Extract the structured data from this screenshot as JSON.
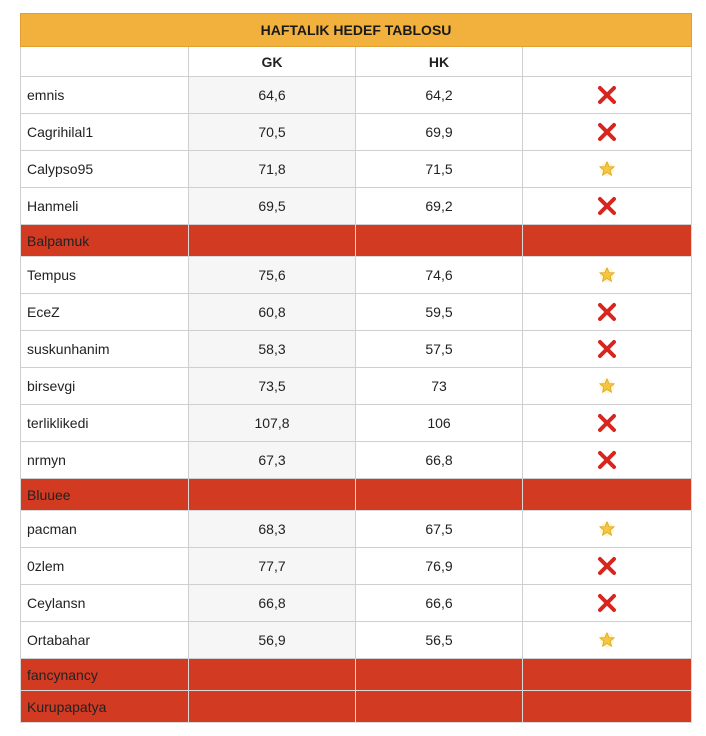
{
  "title": "HAFTALIK HEDEF TABLOSU",
  "columns": [
    "",
    "GK",
    "HK",
    ""
  ],
  "colors": {
    "header_bg": "#f2b13c",
    "missing_row_bg": "#d23a22",
    "cross": "#d8251d",
    "star": "#f5c542"
  },
  "rows": [
    {
      "name": "emnis",
      "gk": "64,6",
      "hk": "64,2",
      "status": "cross-icon"
    },
    {
      "name": "Cagrihilal1",
      "gk": "70,5",
      "hk": "69,9",
      "status": "cross-icon"
    },
    {
      "name": "Calypso95",
      "gk": "71,8",
      "hk": "71,5",
      "status": "star-icon"
    },
    {
      "name": "Hanmeli",
      "gk": "69,5",
      "hk": "69,2",
      "status": "cross-icon"
    },
    {
      "name": "Balpamuk",
      "gk": "",
      "hk": "",
      "status": "missing"
    },
    {
      "name": "Tempus",
      "gk": "75,6",
      "hk": "74,6",
      "status": "star-icon"
    },
    {
      "name": "EceZ",
      "gk": "60,8",
      "hk": "59,5",
      "status": "cross-icon"
    },
    {
      "name": "suskunhanim",
      "gk": "58,3",
      "hk": "57,5",
      "status": "cross-icon"
    },
    {
      "name": "birsevgi",
      "gk": "73,5",
      "hk": "73",
      "status": "star-icon"
    },
    {
      "name": "terliklikedi",
      "gk": "107,8",
      "hk": "106",
      "status": "cross-icon"
    },
    {
      "name": "nrmyn",
      "gk": "67,3",
      "hk": "66,8",
      "status": "cross-icon"
    },
    {
      "name": "Bluuee",
      "gk": "",
      "hk": "",
      "status": "missing"
    },
    {
      "name": "pacman",
      "gk": "68,3",
      "hk": "67,5",
      "status": "star-icon"
    },
    {
      "name": "0zlem",
      "gk": "77,7",
      "hk": "76,9",
      "status": "cross-icon"
    },
    {
      "name": "Ceylansn",
      "gk": "66,8",
      "hk": "66,6",
      "status": "cross-icon"
    },
    {
      "name": "Ortabahar",
      "gk": "56,9",
      "hk": "56,5",
      "status": "star-icon"
    },
    {
      "name": "fancynancy",
      "gk": "",
      "hk": "",
      "status": "missing"
    },
    {
      "name": "Kurupapatya",
      "gk": "",
      "hk": "",
      "status": "missing"
    }
  ]
}
